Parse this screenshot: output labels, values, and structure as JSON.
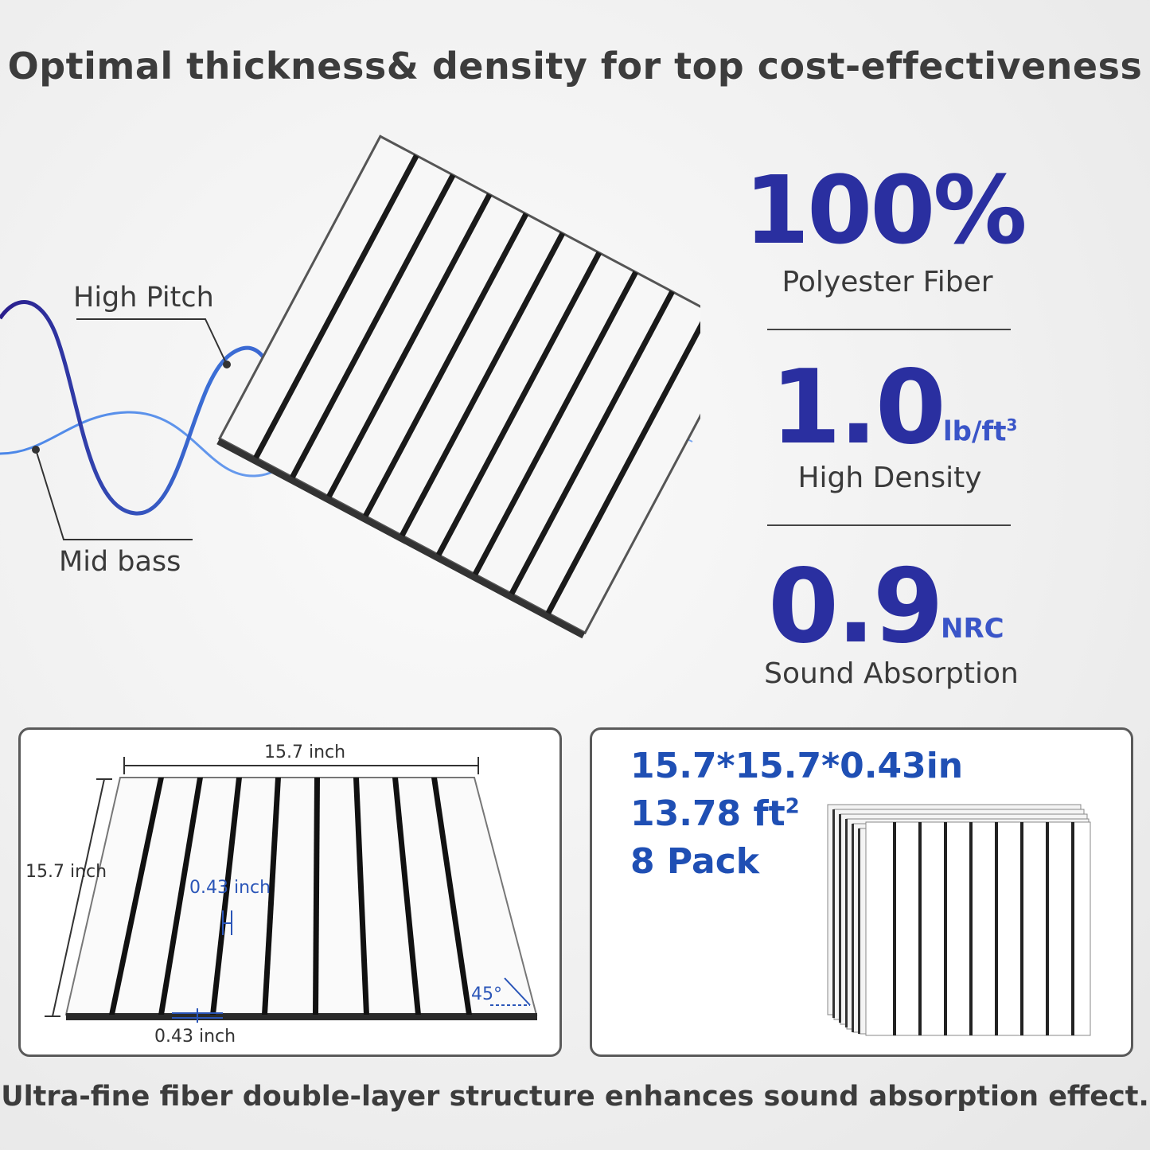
{
  "headline": "Optimal thickness& density for top cost-effectiveness",
  "wave_labels": {
    "high_pitch": "High Pitch",
    "mid_bass": "Mid bass"
  },
  "stats": [
    {
      "value": "100%",
      "unit": "",
      "caption": "Polyester Fiber"
    },
    {
      "value": "1.0",
      "unit": "lb/ft",
      "unit_sup": "3",
      "caption": "High Density"
    },
    {
      "value": "0.9",
      "unit": "NRC",
      "caption": "Sound Absorption"
    }
  ],
  "dimension_panel": {
    "width_label": "15.7 inch",
    "height_label": "15.7 inch",
    "groove_label": "0.43 inch",
    "thickness_label": "0.43 inch",
    "angle_label": "45°"
  },
  "spec_panel": {
    "size": "15.7*15.7*0.43in",
    "area": "13.78 ft",
    "area_sup": "2",
    "pack": "8 Pack"
  },
  "footer": "Ultra-fine fiber double-layer structure enhances sound absorption effect.",
  "colors": {
    "accent_dark": "#2a2fa0",
    "accent_blue": "#1f4fb4",
    "text": "#3c3c3c"
  }
}
